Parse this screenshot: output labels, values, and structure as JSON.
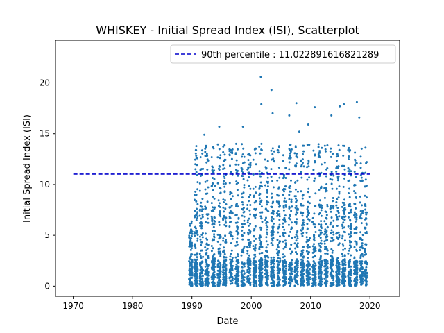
{
  "chart_data": {
    "type": "scatter",
    "title": "WHISKEY - Initial Spread Index (ISI), Scatterplot",
    "xlabel": "Date",
    "ylabel": "Initial Spread Index (ISI)",
    "xlim": [
      1967,
      2025
    ],
    "ylim": [
      -1.0,
      24.2
    ],
    "x_ticks": [
      1970,
      1980,
      1990,
      2000,
      2010,
      2020
    ],
    "y_ticks": [
      0,
      5,
      10,
      15,
      20
    ],
    "grid": false,
    "legend_position": "top-right",
    "colors": {
      "points": "#1f77b4",
      "threshold": "#0000cc"
    },
    "reference_line": {
      "label": "90th percentile : 11.022891616821289",
      "value": 11.022891616821289,
      "x_range": [
        1970,
        2020
      ],
      "style": "dashed"
    },
    "series": [
      {
        "type": "scatter",
        "x_range": [
          1989.5,
          2019.5
        ],
        "y_range": [
          0,
          20.7
        ],
        "seasonal_clusters": [
          1989.8,
          1990.7,
          1991.6,
          1992.5,
          1993.6,
          1994.6,
          1995.5,
          1996.6,
          1997.6,
          1998.6,
          1999.6,
          2000.6,
          2001.6,
          2002.6,
          2003.6,
          2004.6,
          2005.6,
          2006.6,
          2007.6,
          2008.6,
          2009.6,
          2010.6,
          2011.6,
          2012.6,
          2013.6,
          2014.6,
          2015.6,
          2016.6,
          2017.6,
          2018.6,
          2019.4
        ],
        "notable_points": [
          {
            "x": 2001.6,
            "y": 20.6
          },
          {
            "x": 2003.4,
            "y": 19.3
          },
          {
            "x": 2017.8,
            "y": 18.1
          },
          {
            "x": 2007.6,
            "y": 18.0
          },
          {
            "x": 2001.7,
            "y": 17.9
          },
          {
            "x": 2015.6,
            "y": 17.9
          },
          {
            "x": 2014.9,
            "y": 17.7
          },
          {
            "x": 2010.7,
            "y": 17.6
          },
          {
            "x": 2013.5,
            "y": 16.8
          },
          {
            "x": 2006.4,
            "y": 16.8
          },
          {
            "x": 2018.2,
            "y": 16.6
          },
          {
            "x": 2003.6,
            "y": 17.0
          },
          {
            "x": 2009.6,
            "y": 15.9
          },
          {
            "x": 1994.6,
            "y": 15.7
          },
          {
            "x": 1998.6,
            "y": 15.7
          },
          {
            "x": 1992.1,
            "y": 14.9
          },
          {
            "x": 2008.1,
            "y": 15.2
          }
        ]
      }
    ]
  }
}
